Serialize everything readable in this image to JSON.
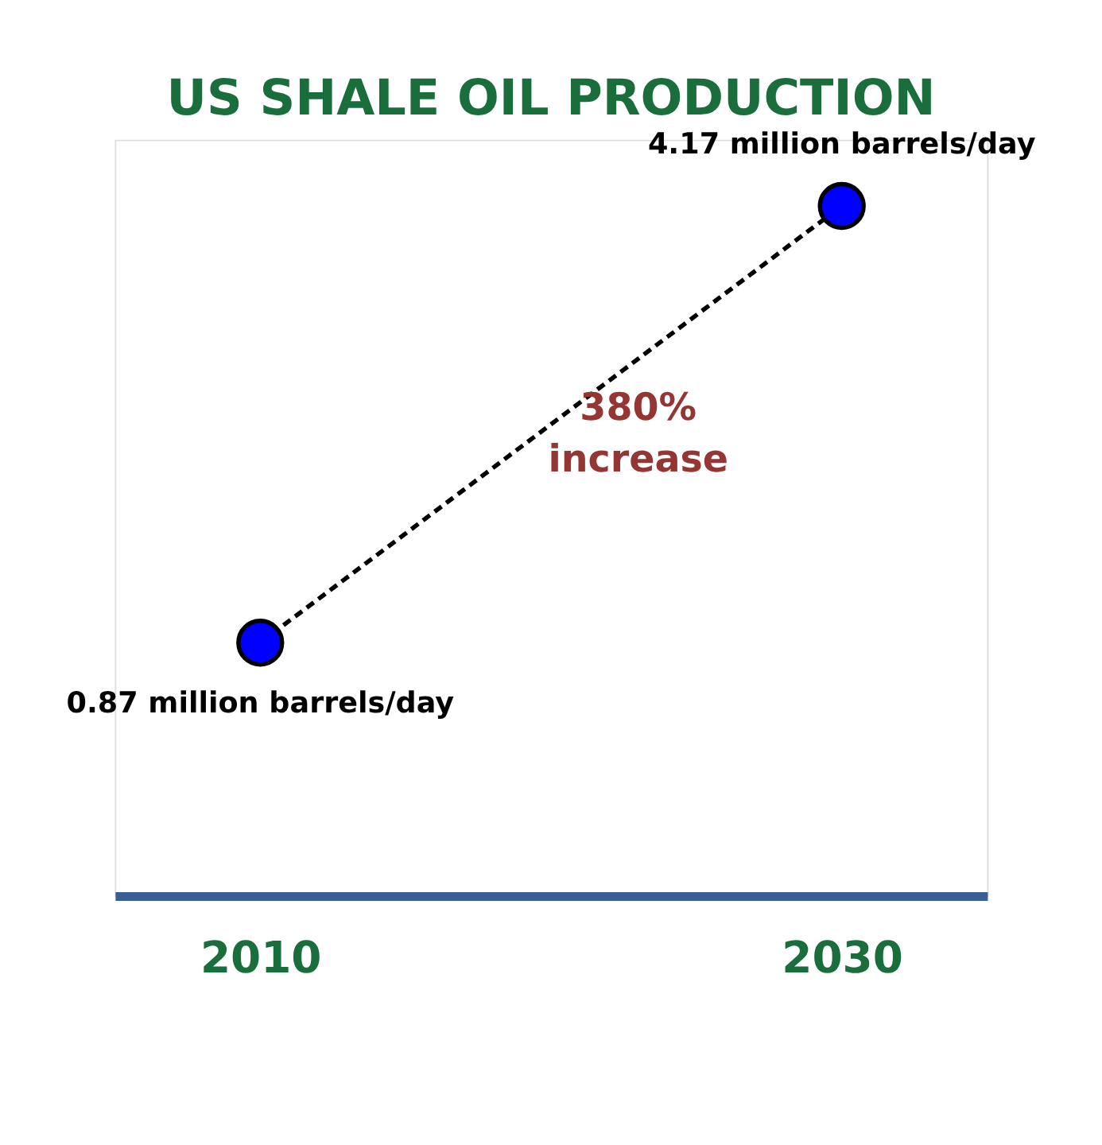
{
  "chart_data": {
    "type": "line",
    "title": "US SHALE OIL PRODUCTION",
    "categories": [
      "2010",
      "2030"
    ],
    "series": [
      {
        "color": "#0000ff",
        "values": [
          0.87,
          4.17
        ],
        "value_labels": [
          "0.87 million barrels/day",
          "4.17 million barrels/day"
        ]
      }
    ],
    "annotations": [
      "380% increase"
    ],
    "marker": "circle",
    "line_style": "dashed",
    "grid": false,
    "legend": false
  }
}
